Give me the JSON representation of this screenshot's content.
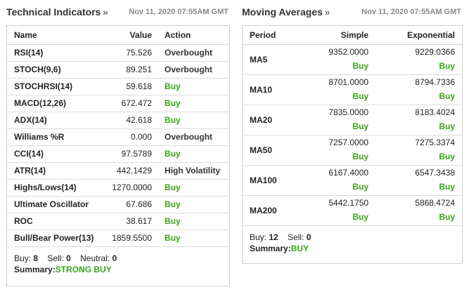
{
  "technical": {
    "title": "Technical Indicators",
    "chevron": "»",
    "timestamp": "Nov 11, 2020 07:55AM GMT",
    "headers": {
      "name": "Name",
      "value": "Value",
      "action": "Action"
    },
    "rows": [
      {
        "name": "RSI(14)",
        "value": "75.526",
        "action": "Overbought",
        "type": "neutral"
      },
      {
        "name": "STOCH(9,6)",
        "value": "89.251",
        "action": "Overbought",
        "type": "neutral"
      },
      {
        "name": "STOCHRSI(14)",
        "value": "59.618",
        "action": "Buy",
        "type": "buy"
      },
      {
        "name": "MACD(12,26)",
        "value": "672.472",
        "action": "Buy",
        "type": "buy"
      },
      {
        "name": "ADX(14)",
        "value": "42.618",
        "action": "Buy",
        "type": "buy"
      },
      {
        "name": "Williams %R",
        "value": "0.000",
        "action": "Overbought",
        "type": "neutral"
      },
      {
        "name": "CCI(14)",
        "value": "97.5789",
        "action": "Buy",
        "type": "buy"
      },
      {
        "name": "ATR(14)",
        "value": "442.1429",
        "action": "High Volatility",
        "type": "neutral"
      },
      {
        "name": "Highs/Lows(14)",
        "value": "1270.0000",
        "action": "Buy",
        "type": "buy"
      },
      {
        "name": "Ultimate Oscillator",
        "value": "67.686",
        "action": "Buy",
        "type": "buy"
      },
      {
        "name": "ROC",
        "value": "38.617",
        "action": "Buy",
        "type": "buy"
      },
      {
        "name": "Bull/Bear Power(13)",
        "value": "1859.5500",
        "action": "Buy",
        "type": "buy"
      }
    ],
    "summary": {
      "buy_label": "Buy:",
      "buy": "8",
      "sell_label": "Sell:",
      "sell": "0",
      "neutral_label": "Neutral:",
      "neutral": "0",
      "summary_label": "Summary:",
      "summary": "STRONG BUY"
    }
  },
  "moving": {
    "title": "Moving Averages",
    "chevron": "»",
    "timestamp": "Nov 11, 2020 07:55AM GMT",
    "headers": {
      "period": "Period",
      "simple": "Simple",
      "exponential": "Exponential"
    },
    "rows": [
      {
        "period": "MA5",
        "simple": "9352.0000",
        "simple_sig": "Buy",
        "exp": "9229.0366",
        "exp_sig": "Buy"
      },
      {
        "period": "MA10",
        "simple": "8701.0000",
        "simple_sig": "Buy",
        "exp": "8794.7336",
        "exp_sig": "Buy"
      },
      {
        "period": "MA20",
        "simple": "7835.0000",
        "simple_sig": "Buy",
        "exp": "8183.4024",
        "exp_sig": "Buy"
      },
      {
        "period": "MA50",
        "simple": "7257.0000",
        "simple_sig": "Buy",
        "exp": "7275.3374",
        "exp_sig": "Buy"
      },
      {
        "period": "MA100",
        "simple": "6167.4000",
        "simple_sig": "Buy",
        "exp": "6547.3438",
        "exp_sig": "Buy"
      },
      {
        "period": "MA200",
        "simple": "5442.1750",
        "simple_sig": "Buy",
        "exp": "5868.4724",
        "exp_sig": "Buy"
      }
    ],
    "summary": {
      "buy_label": "Buy:",
      "buy": "12",
      "sell_label": "Sell:",
      "sell": "0",
      "summary_label": "Summary:",
      "summary": "BUY"
    }
  },
  "colors": {
    "buy": "#3aa21a",
    "border": "#cfcfcf",
    "timestamp": "#8a8a8a"
  }
}
